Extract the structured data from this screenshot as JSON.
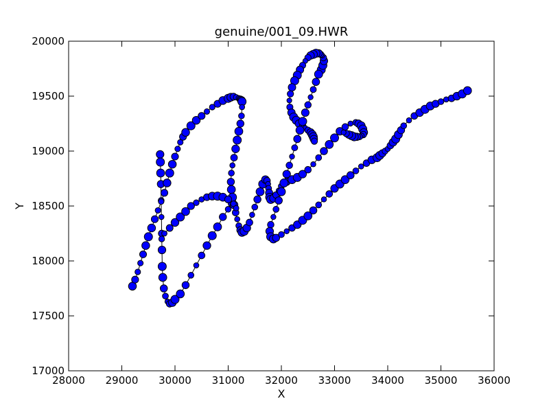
{
  "chart_data": {
    "type": "scatter",
    "title": "genuine/001_09.HWR",
    "xlabel": "X",
    "ylabel": "Y",
    "xlim": [
      28000,
      36000
    ],
    "ylim": [
      17000,
      20000
    ],
    "xticks": [
      28000,
      29000,
      30000,
      31000,
      32000,
      33000,
      34000,
      35000,
      36000
    ],
    "yticks": [
      17000,
      17500,
      18000,
      18500,
      19000,
      19500,
      20000
    ],
    "xtick_labels": [
      "28000",
      "29000",
      "30000",
      "31000",
      "32000",
      "33000",
      "34000",
      "35000",
      "36000"
    ],
    "ytick_labels": [
      "17000",
      "17500",
      "18000",
      "18500",
      "19000",
      "19500",
      "20000"
    ],
    "grid": false,
    "marker_color": "#0000ff",
    "marker_edge_color": "#000000",
    "line_color": "#000000",
    "series": [
      {
        "stroke": 1,
        "x": [
          29720,
          29725,
          29730,
          29735,
          29740,
          29745,
          29750,
          29755,
          29760,
          29770,
          29790,
          29820,
          29860,
          29900,
          29950,
          30000,
          30100,
          30200,
          30300,
          30400,
          30500,
          30600,
          30700,
          30800,
          30900,
          31000,
          31050,
          31080
        ],
        "y": [
          18970,
          18900,
          18800,
          18700,
          18550,
          18400,
          18250,
          18100,
          17950,
          17850,
          17750,
          17680,
          17630,
          17610,
          17620,
          17650,
          17700,
          17780,
          17870,
          17960,
          18050,
          18140,
          18230,
          18310,
          18400,
          18470,
          18520,
          18560
        ]
      },
      {
        "stroke": 2,
        "x": [
          29200,
          29250,
          29300,
          29350,
          29400,
          29450,
          29500,
          29560,
          29620,
          29680,
          29740,
          29800,
          29850,
          29900,
          29950,
          30000,
          30050,
          30100,
          30150,
          30200,
          30300,
          30400,
          30500,
          30600,
          30700,
          30800,
          30900,
          31000,
          31050,
          31100,
          31150,
          31200,
          31230,
          31250,
          31260
        ],
        "y": [
          17770,
          17830,
          17900,
          17980,
          18060,
          18140,
          18220,
          18300,
          18380,
          18460,
          18540,
          18620,
          18710,
          18800,
          18880,
          18950,
          19020,
          19080,
          19130,
          19170,
          19230,
          19280,
          19320,
          19360,
          19400,
          19430,
          19460,
          19480,
          19490,
          19495,
          19490,
          19480,
          19470,
          19460,
          19450
        ]
      },
      {
        "stroke": 3,
        "x": [
          31260,
          31250,
          31230,
          31200,
          31170,
          31140,
          31110,
          31080,
          31060,
          31050,
          31060,
          31080,
          31110,
          31140,
          31170,
          31200,
          31230,
          31260,
          31300,
          31350,
          31400,
          31450,
          31500,
          31550,
          31600,
          31650,
          31700,
          31730,
          31750,
          31760,
          31770,
          31780,
          31800,
          31850,
          31900,
          31950,
          32000,
          32100,
          32200,
          32300,
          32400,
          32500,
          32600,
          32700,
          32800,
          32900,
          33000,
          33100,
          33200,
          33300,
          33400,
          33450,
          33500,
          33530,
          33550,
          33540,
          33510,
          33470,
          33420,
          33370,
          33320,
          33270,
          33220,
          33170
        ],
        "y": [
          19400,
          19320,
          19250,
          19180,
          19100,
          19020,
          18940,
          18870,
          18800,
          18720,
          18650,
          18580,
          18510,
          18440,
          18380,
          18320,
          18280,
          18260,
          18270,
          18300,
          18350,
          18420,
          18490,
          18560,
          18630,
          18700,
          18740,
          18730,
          18700,
          18660,
          18620,
          18580,
          18560,
          18570,
          18600,
          18640,
          18680,
          18720,
          18740,
          18760,
          18790,
          18830,
          18880,
          18940,
          19000,
          19060,
          19120,
          19180,
          19220,
          19250,
          19260,
          19250,
          19230,
          19200,
          19170,
          19150,
          19140,
          19130,
          19130,
          19130,
          19140,
          19150,
          19160,
          19170
        ]
      },
      {
        "stroke": 4,
        "x": [
          32700,
          32750,
          32780,
          32800,
          32790,
          32770,
          32740,
          32700,
          32650,
          32600,
          32550,
          32500,
          32450,
          32400,
          32350,
          32300,
          32250,
          32200,
          32170,
          32150,
          32160,
          32190,
          32230,
          32280,
          32330,
          32400,
          32450,
          32500,
          32550,
          32580,
          32600,
          32610,
          32620
        ],
        "y": [
          19700,
          19740,
          19780,
          19820,
          19850,
          19870,
          19880,
          19890,
          19890,
          19880,
          19870,
          19850,
          19820,
          19780,
          19740,
          19690,
          19640,
          19580,
          19520,
          19460,
          19400,
          19350,
          19310,
          19280,
          19250,
          19230,
          19210,
          19190,
          19170,
          19150,
          19130,
          19110,
          19090
        ]
      },
      {
        "stroke": 5,
        "x": [
          32700,
          32650,
          32600,
          32550,
          32500,
          32450,
          32400,
          32350,
          32300,
          32250,
          32200,
          32150,
          32100,
          32050,
          32000,
          31950,
          31900,
          31850,
          31800,
          31780,
          31800,
          31850,
          31900,
          32000,
          32100,
          32200,
          32300,
          32400,
          32500,
          32600,
          32700,
          32800,
          32900,
          33000,
          33100,
          33200,
          33300,
          33400,
          33500,
          33600,
          33700,
          33800,
          33850,
          33900,
          33950,
          34000,
          34050,
          34100,
          34150,
          34200,
          34250,
          34300,
          34400,
          34500,
          34600,
          34700,
          34800,
          34900,
          35000,
          35100,
          35200,
          35300,
          35400,
          35500
        ],
        "y": [
          19700,
          19630,
          19560,
          19490,
          19420,
          19350,
          19270,
          19190,
          19110,
          19030,
          18950,
          18870,
          18790,
          18710,
          18630,
          18550,
          18470,
          18400,
          18330,
          18270,
          18220,
          18200,
          18210,
          18240,
          18270,
          18300,
          18330,
          18370,
          18410,
          18460,
          18510,
          18560,
          18610,
          18660,
          18700,
          18740,
          18780,
          18820,
          18860,
          18890,
          18920,
          18940,
          18960,
          18980,
          19000,
          19020,
          19050,
          19080,
          19110,
          19150,
          19190,
          19230,
          19280,
          19320,
          19350,
          19380,
          19410,
          19430,
          19450,
          19470,
          19480,
          19500,
          19520,
          19550
        ]
      },
      {
        "stroke": 6,
        "x": [
          29750,
          29800,
          29900,
          30000,
          30100,
          30200,
          30300,
          30400,
          30500,
          30600,
          30700,
          30800,
          30900,
          31000,
          31100,
          31150
        ],
        "y": [
          18200,
          18250,
          18300,
          18350,
          18400,
          18450,
          18500,
          18530,
          18560,
          18580,
          18590,
          18590,
          18580,
          18560,
          18520,
          18480
        ]
      }
    ]
  }
}
